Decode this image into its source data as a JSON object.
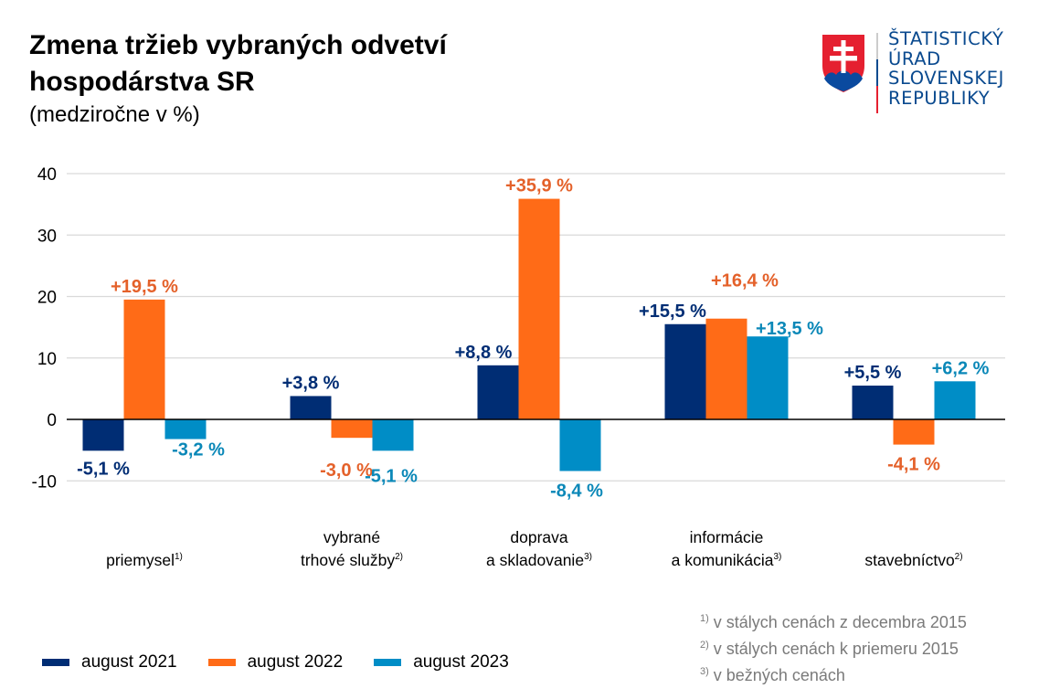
{
  "header": {
    "title_line1": "Zmena tržieb vybraných odvetví",
    "title_line2": "hospodárstva SR",
    "subtitle": "(medziročne v %)"
  },
  "logo": {
    "lines": [
      "ŠTATISTICKÝ",
      "ÚRAD",
      "SLOVENSKEJ",
      "REPUBLIKY"
    ],
    "icon": "slovak-coat-of-arms-icon"
  },
  "colors": {
    "series_2021": "#002d74",
    "series_2022": "#ff6b17",
    "series_2023": "#008dc6",
    "label_2021": "#002d74",
    "label_2022": "#e4612a",
    "label_2023": "#0b88b8",
    "grid": "#d9d9d9",
    "axis": "#000000"
  },
  "chart_data": {
    "type": "bar",
    "title": "Zmena tržieb vybraných odvetví hospodárstva SR",
    "subtitle": "(medziročne v %)",
    "xlabel": "",
    "ylabel": "",
    "ylim": [
      -10,
      40
    ],
    "yticks": [
      40,
      30,
      20,
      10,
      0,
      -10
    ],
    "grid": true,
    "legend_position": "bottom-left",
    "categories": [
      {
        "lines": [
          "priemysel"
        ],
        "sup": "1)"
      },
      {
        "lines": [
          "vybrané",
          "trhové služby"
        ],
        "sup": "2)"
      },
      {
        "lines": [
          "doprava",
          "a skladovanie"
        ],
        "sup": "3)"
      },
      {
        "lines": [
          "informácie",
          "a komunikácia"
        ],
        "sup": "3)"
      },
      {
        "lines": [
          "stavebníctvo"
        ],
        "sup": "2)"
      }
    ],
    "series": [
      {
        "name": "august 2021",
        "values": [
          -5.1,
          3.8,
          8.8,
          15.5,
          5.5
        ],
        "labels": [
          "-5,1 %",
          "+3,8 %",
          "+8,8 %",
          "+15,5 %",
          "+5,5 %"
        ]
      },
      {
        "name": "august 2022",
        "values": [
          19.5,
          -3.0,
          35.9,
          16.4,
          -4.1
        ],
        "labels": [
          "+19,5 %",
          "-3,0 %",
          "+35,9 %",
          "+16,4 %",
          "-4,1 %"
        ]
      },
      {
        "name": "august 2023",
        "values": [
          -3.2,
          -5.1,
          -8.4,
          13.5,
          6.2
        ],
        "labels": [
          "-3,2 %",
          "-5,1 %",
          "-8,4 %",
          "+13,5 %",
          "+6,2 %"
        ]
      }
    ]
  },
  "legend": [
    {
      "label": "august 2021"
    },
    {
      "label": "august 2022"
    },
    {
      "label": "august 2023"
    }
  ],
  "notes": [
    {
      "sup": "1)",
      "text": " v stálych cenách z decembra 2015"
    },
    {
      "sup": "2)",
      "text": " v stálych cenách k priemeru 2015"
    },
    {
      "sup": "3)",
      "text": " v bežných cenách"
    }
  ]
}
